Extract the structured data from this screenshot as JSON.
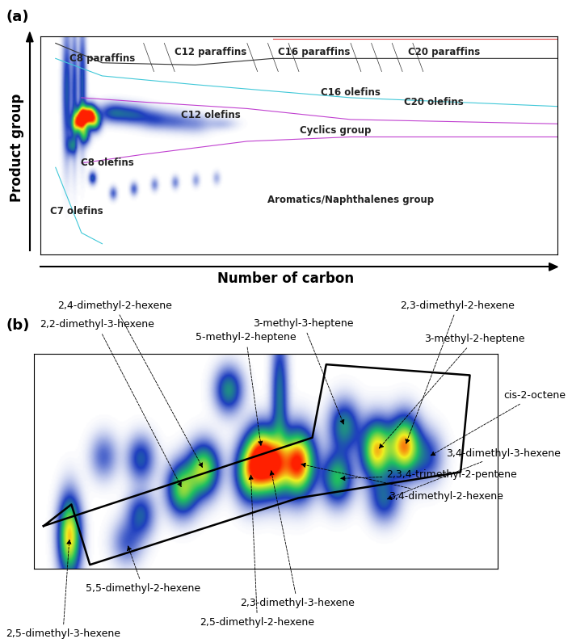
{
  "chart_data": [
    {
      "type": "heatmap",
      "title": "(a)",
      "x_label": "Number of carbon",
      "y_label": "Product group",
      "tick_labels": false,
      "xlim": [
        0,
        100
      ],
      "ylim": [
        0,
        100
      ],
      "colors": [
        "#ffffff",
        "#1f3fbf",
        "#20c060",
        "#f0f020",
        "#ff2000"
      ],
      "regions": [
        "C8 paraffins",
        "C12 paraffins",
        "C16 paraffins",
        "C20 paraffins",
        "C12 olefins",
        "C16 olefins",
        "C20 olefins",
        "Cyclics group",
        "C8 olefins",
        "C7 olefins",
        "Aromatics/Naphthalenes group"
      ],
      "peaks": [
        {
          "x": 8,
          "y": 63,
          "intensity": 1.0,
          "width": 0.8,
          "height": 3
        },
        {
          "x": 9.5,
          "y": 64,
          "intensity": 0.9,
          "width": 0.8,
          "height": 3
        },
        {
          "x": 7,
          "y": 60,
          "intensity": 0.6,
          "width": 0.8,
          "height": 3
        },
        {
          "x": 10.5,
          "y": 61,
          "intensity": 0.5,
          "width": 0.8,
          "height": 3
        },
        {
          "x": 8.5,
          "y": 55,
          "intensity": 0.4,
          "width": 0.7,
          "height": 3
        },
        {
          "x": 6,
          "y": 50,
          "intensity": 0.3,
          "width": 0.7,
          "height": 3
        },
        {
          "x": 5,
          "y": 75,
          "intensity": 0.3,
          "width": 0.6,
          "height": 20
        },
        {
          "x": 6.5,
          "y": 75,
          "intensity": 0.25,
          "width": 0.4,
          "height": 20
        },
        {
          "x": 8,
          "y": 78,
          "intensity": 0.3,
          "width": 0.5,
          "height": 18
        },
        {
          "x": 14,
          "y": 65,
          "intensity": 0.3,
          "width": 2,
          "height": 3
        },
        {
          "x": 18,
          "y": 64,
          "intensity": 0.25,
          "width": 2,
          "height": 3
        },
        {
          "x": 22,
          "y": 62,
          "intensity": 0.2,
          "width": 2,
          "height": 3
        },
        {
          "x": 26,
          "y": 61,
          "intensity": 0.15,
          "width": 2,
          "height": 3
        },
        {
          "x": 30,
          "y": 60,
          "intensity": 0.12,
          "width": 2,
          "height": 3
        },
        {
          "x": 35,
          "y": 60,
          "intensity": 0.08,
          "width": 2,
          "height": 2
        },
        {
          "x": 10,
          "y": 35,
          "intensity": 0.3,
          "width": 0.5,
          "height": 2
        },
        {
          "x": 14,
          "y": 28,
          "intensity": 0.2,
          "width": 0.5,
          "height": 2
        },
        {
          "x": 18,
          "y": 30,
          "intensity": 0.2,
          "width": 0.5,
          "height": 2
        },
        {
          "x": 22,
          "y": 32,
          "intensity": 0.15,
          "width": 0.5,
          "height": 2
        },
        {
          "x": 26,
          "y": 33,
          "intensity": 0.15,
          "width": 0.5,
          "height": 2
        },
        {
          "x": 30,
          "y": 34,
          "intensity": 0.12,
          "width": 0.5,
          "height": 2
        },
        {
          "x": 34,
          "y": 35,
          "intensity": 0.1,
          "width": 0.5,
          "height": 2
        }
      ]
    },
    {
      "type": "heatmap",
      "title": "(b)",
      "tick_labels": false,
      "xlim": [
        0,
        100
      ],
      "ylim": [
        0,
        100
      ],
      "colors": [
        "#ffffff",
        "#1f3fbf",
        "#20c060",
        "#f0f020",
        "#ff2000"
      ],
      "peaks": [
        {
          "label": "2,4-dimethyl-2-hexene",
          "x": 36.6,
          "y": 46,
          "intensity": 0.65,
          "width": 2.2,
          "height": 8
        },
        {
          "label": "2,2-dimethyl-3-hexene",
          "x": 32,
          "y": 37,
          "intensity": 0.6,
          "width": 2.2,
          "height": 8
        },
        {
          "label": "5-methyl-2-heptene",
          "x": 49,
          "y": 56,
          "intensity": 0.5,
          "width": 2.2,
          "height": 8
        },
        {
          "label": "3-methyl-3-heptene",
          "x": 67,
          "y": 66,
          "intensity": 0.4,
          "width": 2.2,
          "height": 8
        },
        {
          "label": "2,3-dimethyl-2-hexene",
          "x": 80,
          "y": 57,
          "intensity": 0.85,
          "width": 2.2,
          "height": 9
        },
        {
          "label": "3-methyl-2-heptene",
          "x": 74,
          "y": 55,
          "intensity": 0.8,
          "width": 2.2,
          "height": 9
        },
        {
          "label": "cis-2-octene",
          "x": 85,
          "y": 52,
          "intensity": 0.25,
          "width": 2.2,
          "height": 8
        },
        {
          "label": "3,4-dimethyl-3-hexene",
          "x": 75.6,
          "y": 32,
          "intensity": 0.3,
          "width": 2.2,
          "height": 7
        },
        {
          "label": "2,3,4-trimethyl-2-pentene",
          "x": 65.5,
          "y": 42,
          "intensity": 0.5,
          "width": 2.2,
          "height": 8
        },
        {
          "label": "3,4-dimethyl-2-hexene",
          "x": 57,
          "y": 49,
          "intensity": 1.0,
          "width": 2.4,
          "height": 10
        },
        {
          "label": "5,5-dimethyl-2-hexene",
          "x": 20,
          "y": 12,
          "intensity": 0.2,
          "width": 2.2,
          "height": 7
        },
        {
          "label": "2,3-dimethyl-3-hexene",
          "x": 51,
          "y": 47,
          "intensity": 0.85,
          "width": 2.4,
          "height": 9
        },
        {
          "label": "2,5-dimethyl-2-hexene",
          "x": 46.7,
          "y": 45,
          "intensity": 0.7,
          "width": 2.2,
          "height": 9
        },
        {
          "label": "2,5-dimethyl-3-hexene",
          "x": 7.6,
          "y": 15,
          "intensity": 0.8,
          "width": 1.6,
          "height": 12
        },
        {
          "x": 23,
          "y": 51,
          "intensity": 0.3,
          "width": 2,
          "height": 7
        },
        {
          "x": 23,
          "y": 25,
          "intensity": 0.3,
          "width": 2,
          "height": 7
        },
        {
          "x": 42,
          "y": 83,
          "intensity": 0.4,
          "width": 2,
          "height": 7
        },
        {
          "x": 53,
          "y": 80,
          "intensity": 0.35,
          "width": 1.2,
          "height": 20
        },
        {
          "x": 15,
          "y": 52,
          "intensity": 0.2,
          "width": 2,
          "height": 7
        }
      ]
    }
  ]
}
